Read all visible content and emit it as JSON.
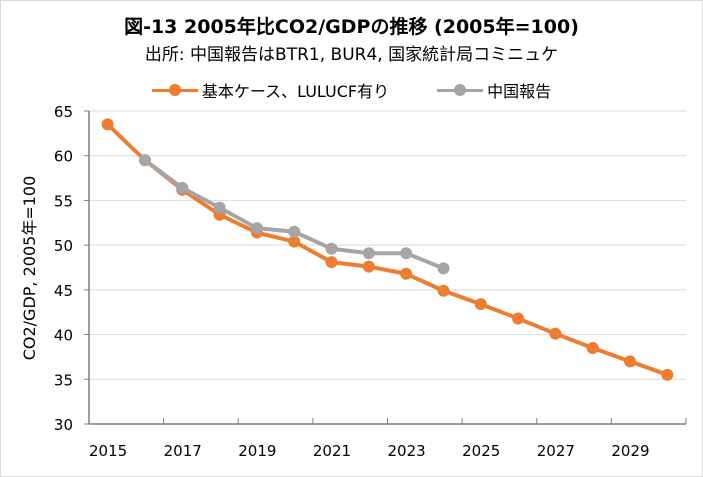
{
  "chart_data": {
    "type": "line",
    "title": "図-13  2005年比CO2/GDPの推移 (2005年=100)",
    "subtitle": "出所: 中国報告はBTR1, BUR4, 国家統計局コミニュケ",
    "xlabel": "",
    "ylabel": "CO2/GDP, 2005年=100",
    "x": [
      2015,
      2016,
      2017,
      2018,
      2019,
      2020,
      2021,
      2022,
      2023,
      2024,
      2025,
      2026,
      2027,
      2028,
      2029,
      2030
    ],
    "x_tick_labels": [
      "2015",
      "2017",
      "2019",
      "2021",
      "2023",
      "2025",
      "2027",
      "2029"
    ],
    "ylim": [
      30,
      65
    ],
    "y_ticks": [
      30,
      35,
      40,
      45,
      50,
      55,
      60,
      65
    ],
    "grid": true,
    "legend_position": "top",
    "series": [
      {
        "name": "基本ケース、LULUCF有り",
        "color": "#ed7d31",
        "values": [
          63.5,
          59.5,
          56.2,
          53.4,
          51.4,
          50.4,
          48.1,
          47.6,
          46.8,
          44.9,
          43.4,
          41.8,
          40.1,
          38.5,
          37.0,
          35.5
        ]
      },
      {
        "name": "中国報告",
        "color": "#a5a5a5",
        "values": [
          null,
          59.5,
          56.4,
          54.2,
          51.9,
          51.5,
          49.6,
          49.1,
          49.1,
          47.4,
          null,
          null,
          null,
          null,
          null,
          null
        ]
      }
    ]
  }
}
